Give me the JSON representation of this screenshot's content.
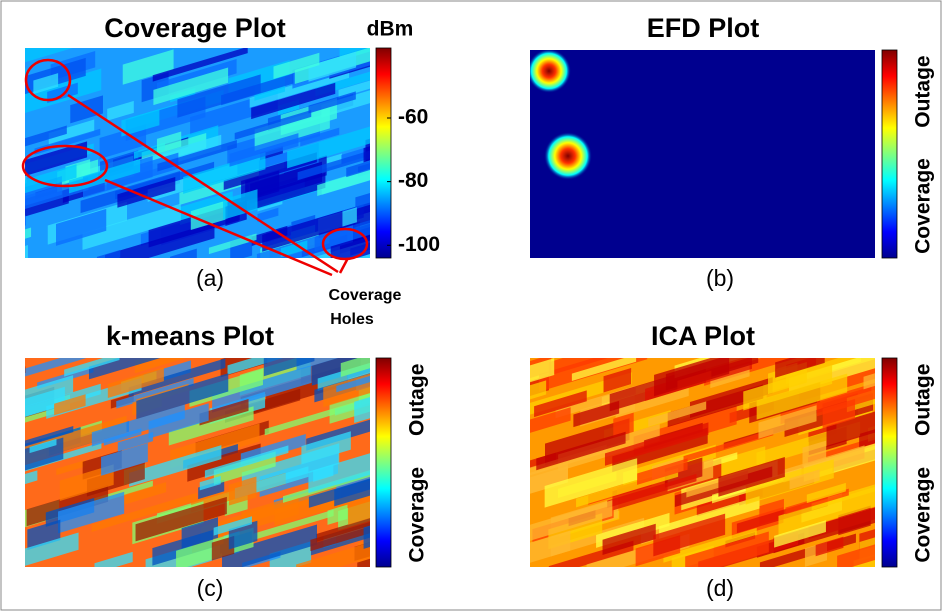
{
  "panels": [
    {
      "title": "Coverage Plot",
      "caption": "(a)",
      "colorbar": {
        "unit": "dBm",
        "lim": [
          -104,
          -38
        ],
        "ticks": [
          -60,
          -80,
          -100
        ]
      }
    },
    {
      "title": "EFD Plot",
      "caption": "(b)",
      "colorbar": {
        "labels": [
          "Outage",
          "Coverage"
        ]
      }
    },
    {
      "title": "k-means Plot",
      "caption": "(c)",
      "colorbar": {
        "labels": [
          "Outage",
          "Coverage"
        ]
      }
    },
    {
      "title": "ICA Plot",
      "caption": "(d)",
      "colorbar": {
        "labels": [
          "Outage",
          "Coverage"
        ]
      }
    }
  ],
  "annotation": {
    "lines": [
      "Coverage",
      "Holes"
    ]
  }
}
